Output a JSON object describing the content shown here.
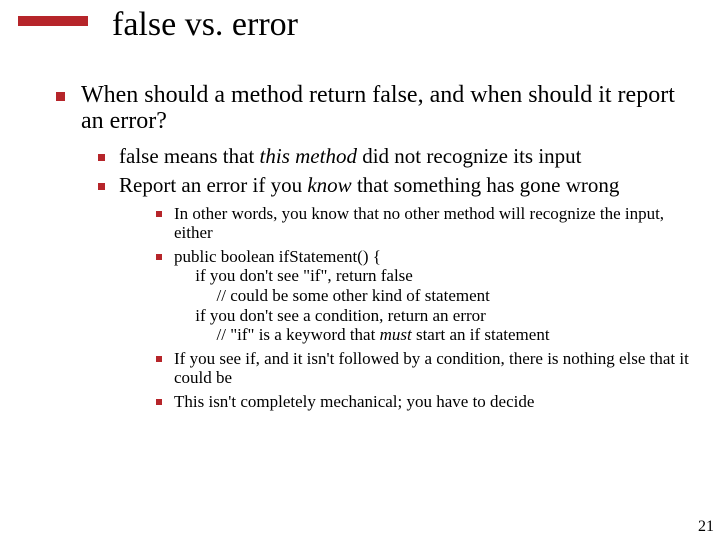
{
  "accent_color": "#b6252a",
  "title": {
    "part1": "false",
    "part2": " vs. error"
  },
  "bullets": {
    "b1": {
      "pre": "When should a method return ",
      "code": "false",
      "post": ", and when should it report an error?"
    },
    "b1_1": {
      "code": "false",
      "mid1": " means that ",
      "ital": "this method",
      "mid2": " did not recognize its input"
    },
    "b1_2": {
      "pre": "Report an error if you ",
      "ital": "know",
      "post": " that something has gone wrong"
    },
    "b1_2_1": "In other words, you know that no other method will recognize the input, either",
    "b1_2_2": {
      "l1": "public boolean ifStatement() {",
      "l2": "     if you don't see \"if\", return false",
      "l3": "          // could be some other kind of statement",
      "l4": "     if you don't see a condition, return an error",
      "l5a": "          // \"if\" is a keyword that ",
      "l5b": "must",
      "l5c": " start an if statement"
    },
    "b1_2_3": {
      "pre": "If you see ",
      "code": "if",
      "post": ", and it isn't followed by a condition, there is nothing else that it could be"
    },
    "b1_2_4": "This isn't completely mechanical; you have to decide"
  },
  "page_number": "21"
}
